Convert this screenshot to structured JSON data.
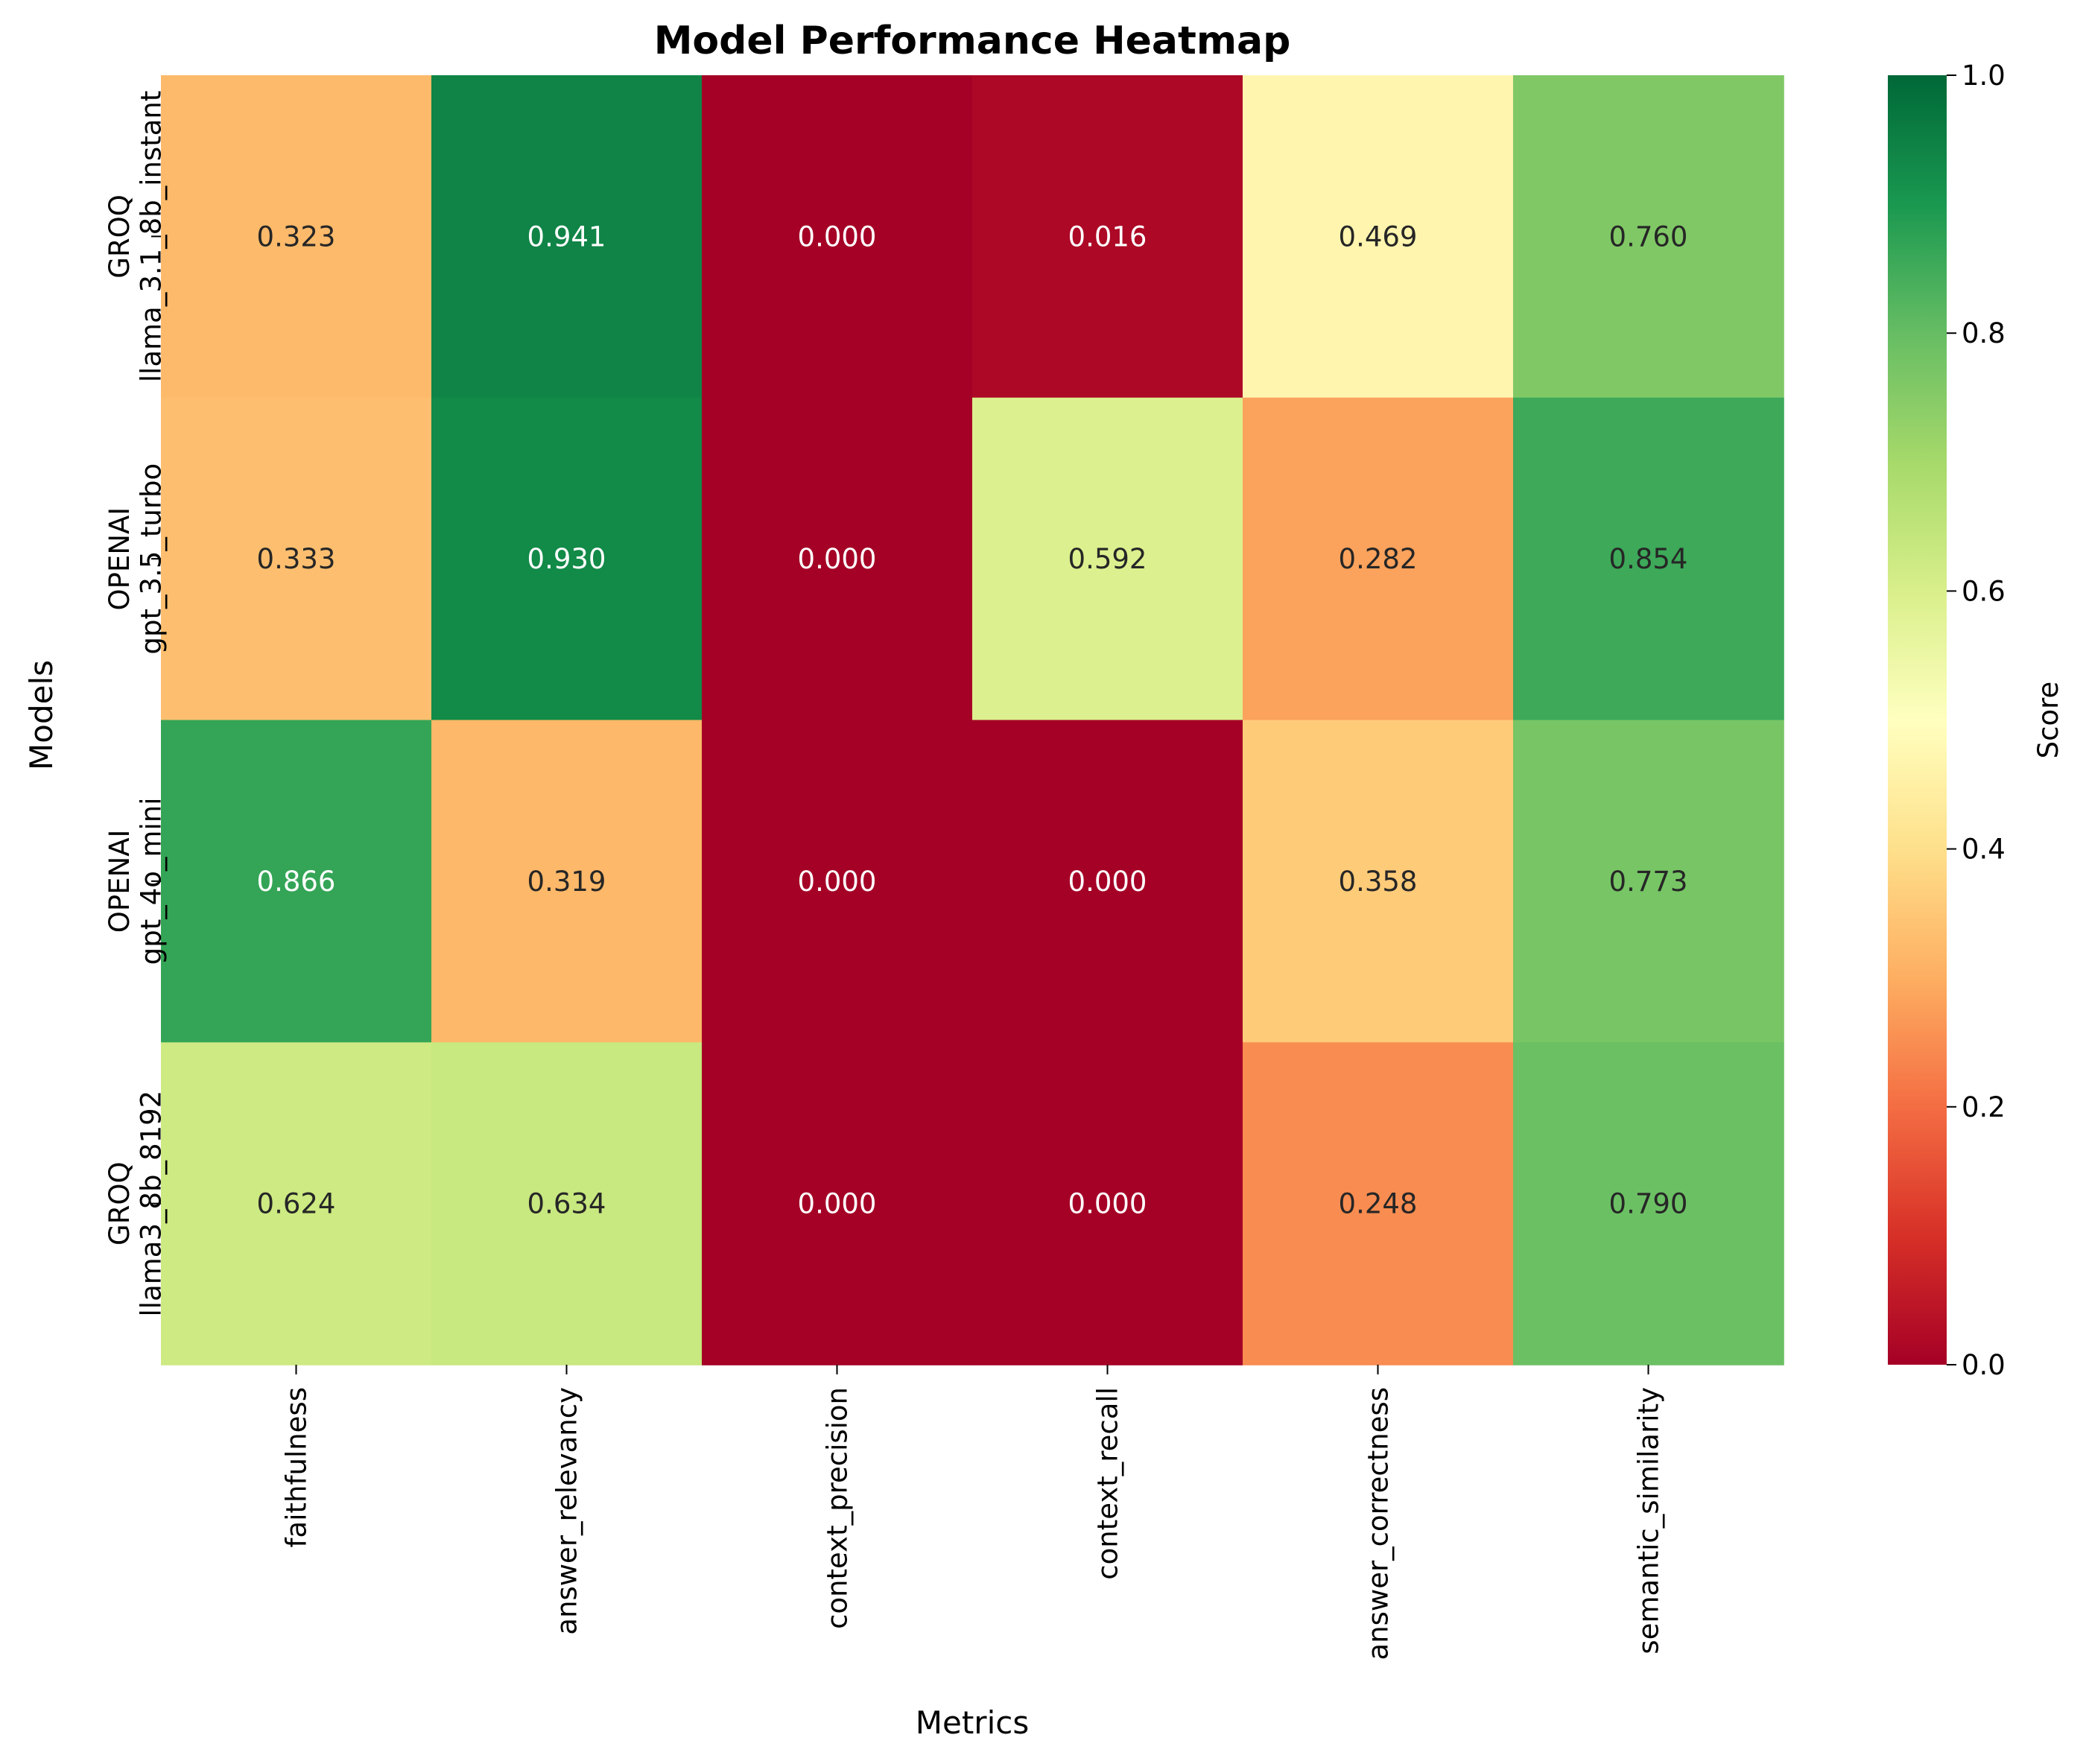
{
  "chart_data": {
    "type": "heatmap",
    "title": "Model Performance Heatmap",
    "xlabel": "Metrics",
    "ylabel": "Models",
    "colorbar_label": "Score",
    "colormap": "RdYlGn",
    "vmin": 0.0,
    "vmax": 1.0,
    "colorbar_ticks": [
      "0.0",
      "0.2",
      "0.4",
      "0.6",
      "0.8",
      "1.0"
    ],
    "columns": [
      "faithfulness",
      "answer_relevancy",
      "context_precision",
      "context_recall",
      "answer_correctness",
      "semantic_similarity"
    ],
    "rows": [
      {
        "line1": "GROQ",
        "line2": "llama_3.1_8b_instant"
      },
      {
        "line1": "OPENAI",
        "line2": "gpt_3.5_turbo"
      },
      {
        "line1": "OPENAI",
        "line2": "gpt_4o_mini"
      },
      {
        "line1": "GROQ",
        "line2": "llama3_8b_8192"
      }
    ],
    "values": [
      [
        0.323,
        0.941,
        0.0,
        0.016,
        0.469,
        0.76
      ],
      [
        0.333,
        0.93,
        0.0,
        0.592,
        0.282,
        0.854
      ],
      [
        0.866,
        0.319,
        0.0,
        0.0,
        0.358,
        0.773
      ],
      [
        0.624,
        0.634,
        0.0,
        0.0,
        0.248,
        0.79
      ]
    ],
    "value_format": "0.000"
  }
}
